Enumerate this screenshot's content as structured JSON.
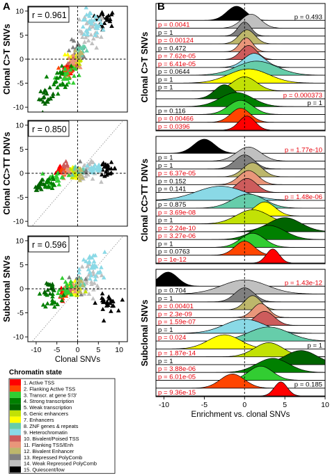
{
  "panel_labels": {
    "a": "A",
    "b": "B"
  },
  "chromatin_states": [
    {
      "label": "1. Active TSS",
      "color": "#ff0000"
    },
    {
      "label": "2. Flanking Active TSS",
      "color": "#ff4500"
    },
    {
      "label": "3. Transcr. at gene 5'/3'",
      "color": "#32cd32"
    },
    {
      "label": "4. Strong transcription",
      "color": "#008000"
    },
    {
      "label": "5. Weak transcription",
      "color": "#006400"
    },
    {
      "label": "6. Genic enhancers",
      "color": "#c2e105"
    },
    {
      "label": "7. Enhancers",
      "color": "#ffff00"
    },
    {
      "label": "8. ZNF genes & repeats",
      "color": "#66cdaa"
    },
    {
      "label": "9. Heterochromatin",
      "color": "#8ad9e6"
    },
    {
      "label": "10. Bivalent/Poised TSS",
      "color": "#cd5c5c"
    },
    {
      "label": "11. Flanking TSS/Enh",
      "color": "#e9967a"
    },
    {
      "label": "12. Bivalent Enhancer",
      "color": "#bdb76b"
    },
    {
      "label": "13. Repressed PolyComb",
      "color": "#808080"
    },
    {
      "label": "14. Weak Repressed PolyComb",
      "color": "#c0c0c0"
    },
    {
      "label": "15. Quiescent/low",
      "color": "#000000"
    }
  ],
  "legend_title": "Chromatin state",
  "chart_data": [
    {
      "type": "scatter",
      "ylabel": "Clonal C>T SNVs",
      "annotation": "r = 0.961",
      "xlim": [
        -12,
        12
      ],
      "ylim": [
        -11,
        11
      ],
      "xticks": [],
      "yticks": [
        "-10",
        "-5",
        "0",
        "5",
        "10"
      ],
      "ytick_values": [
        -10,
        -5,
        0,
        5,
        10
      ],
      "grid": false,
      "marker": "triangle",
      "show_diagonal": false,
      "clusters": [
        {
          "state": 15,
          "cx": 6.5,
          "cy": 8.5,
          "sx": 2.5,
          "sy": 1.5,
          "n": 25
        },
        {
          "state": 14,
          "cx": 3.5,
          "cy": 6,
          "sx": 2.5,
          "sy": 3,
          "n": 35
        },
        {
          "state": 9,
          "cx": 3,
          "cy": 7,
          "sx": 2.5,
          "sy": 2.5,
          "n": 30
        },
        {
          "state": 13,
          "cx": 0,
          "cy": 1.5,
          "sx": 2,
          "sy": 2,
          "n": 15
        },
        {
          "state": 7,
          "cx": -1,
          "cy": 0,
          "sx": 1.5,
          "sy": 1.5,
          "n": 25
        },
        {
          "state": 6,
          "cx": -0.5,
          "cy": -0.5,
          "sx": 1.5,
          "sy": 1.5,
          "n": 20
        },
        {
          "state": 1,
          "cx": -2,
          "cy": -2,
          "sx": 1.2,
          "sy": 1.2,
          "n": 20
        },
        {
          "state": 2,
          "cx": -2.5,
          "cy": -2.5,
          "sx": 1,
          "sy": 1,
          "n": 15
        },
        {
          "state": 10,
          "cx": -1.5,
          "cy": -1,
          "sx": 1,
          "sy": 1,
          "n": 10
        },
        {
          "state": 11,
          "cx": -1,
          "cy": -0.5,
          "sx": 1,
          "sy": 1,
          "n": 10
        },
        {
          "state": 3,
          "cx": -3,
          "cy": -3,
          "sx": 2,
          "sy": 2,
          "n": 20
        },
        {
          "state": 4,
          "cx": -4,
          "cy": -4,
          "sx": 2,
          "sy": 2.5,
          "n": 20
        },
        {
          "state": 5,
          "cx": -7.5,
          "cy": -8,
          "sx": 1.5,
          "sy": 1.5,
          "n": 20
        },
        {
          "state": 8,
          "cx": 1,
          "cy": 2,
          "sx": 1.5,
          "sy": 1.5,
          "n": 10
        },
        {
          "state": 12,
          "cx": 0.5,
          "cy": 1,
          "sx": 1,
          "sy": 1,
          "n": 8
        }
      ]
    },
    {
      "type": "scatter",
      "ylabel": "Clonal CC>TT DNVs",
      "annotation": "r = 0.850",
      "xlim": [
        -12,
        12
      ],
      "ylim": [
        -11,
        11
      ],
      "xticks": [],
      "yticks": [
        "-10",
        "-5",
        "0",
        "5",
        "10"
      ],
      "ytick_values": [
        -10,
        -5,
        0,
        5,
        10
      ],
      "grid": false,
      "marker": "triangle",
      "show_diagonal": true,
      "clusters": [
        {
          "state": 15,
          "cx": 7,
          "cy": 1,
          "sx": 2,
          "sy": 1,
          "n": 25
        },
        {
          "state": 14,
          "cx": 3,
          "cy": 0.5,
          "sx": 2,
          "sy": 1.5,
          "n": 25
        },
        {
          "state": 9,
          "cx": 4,
          "cy": 1,
          "sx": 2,
          "sy": 1.2,
          "n": 25
        },
        {
          "state": 13,
          "cx": 1,
          "cy": 0.5,
          "sx": 1.5,
          "sy": 1,
          "n": 12
        },
        {
          "state": 7,
          "cx": -1,
          "cy": 0,
          "sx": 1.5,
          "sy": 1,
          "n": 20
        },
        {
          "state": 6,
          "cx": -0.5,
          "cy": 0,
          "sx": 1.5,
          "sy": 1,
          "n": 15
        },
        {
          "state": 1,
          "cx": -4,
          "cy": 0.5,
          "sx": 0.8,
          "sy": 0.8,
          "n": 15
        },
        {
          "state": 2,
          "cx": -3.5,
          "cy": 0.5,
          "sx": 0.8,
          "sy": 0.8,
          "n": 12
        },
        {
          "state": 10,
          "cx": -3,
          "cy": 1,
          "sx": 1,
          "sy": 1,
          "n": 8
        },
        {
          "state": 11,
          "cx": -2,
          "cy": 0.5,
          "sx": 1,
          "sy": 1,
          "n": 8
        },
        {
          "state": 3,
          "cx": -5,
          "cy": -1,
          "sx": 2,
          "sy": 1.5,
          "n": 20
        },
        {
          "state": 4,
          "cx": -7,
          "cy": -2,
          "sx": 1.5,
          "sy": 1,
          "n": 20
        },
        {
          "state": 5,
          "cx": -9,
          "cy": -2.5,
          "sx": 1,
          "sy": 0.8,
          "n": 15
        },
        {
          "state": 8,
          "cx": 0,
          "cy": 0.5,
          "sx": 1.5,
          "sy": 1,
          "n": 10
        },
        {
          "state": 12,
          "cx": 0.5,
          "cy": 0,
          "sx": 1,
          "sy": 1,
          "n": 8
        }
      ]
    },
    {
      "type": "scatter",
      "ylabel": "Subclonal SNVs",
      "xlabel": "Clonal SNVs",
      "annotation": "r = 0.596",
      "xlim": [
        -12,
        12
      ],
      "ylim": [
        -11,
        11
      ],
      "xticks": [
        "-10",
        "-5",
        "0",
        "5",
        "10"
      ],
      "xtick_values": [
        -10,
        -5,
        0,
        5,
        10
      ],
      "yticks": [
        "-10",
        "-5",
        "0",
        "5",
        "10"
      ],
      "ytick_values": [
        -10,
        -5,
        0,
        5,
        10
      ],
      "grid": false,
      "marker": "triangle",
      "show_diagonal": true,
      "clusters": [
        {
          "state": 15,
          "cx": 7,
          "cy": -3,
          "sx": 2,
          "sy": 1.5,
          "n": 25
        },
        {
          "state": 14,
          "cx": 3,
          "cy": 2,
          "sx": 2,
          "sy": 3,
          "n": 25
        },
        {
          "state": 9,
          "cx": 3.5,
          "cy": 4,
          "sx": 2.5,
          "sy": 3,
          "n": 30
        },
        {
          "state": 13,
          "cx": 0,
          "cy": 1,
          "sx": 2,
          "sy": 2,
          "n": 12
        },
        {
          "state": 7,
          "cx": -1,
          "cy": 0,
          "sx": 1.5,
          "sy": 2,
          "n": 20
        },
        {
          "state": 6,
          "cx": 0,
          "cy": 0,
          "sx": 1.5,
          "sy": 1.5,
          "n": 15
        },
        {
          "state": 1,
          "cx": -3.5,
          "cy": -0.5,
          "sx": 0.8,
          "sy": 1.2,
          "n": 15
        },
        {
          "state": 2,
          "cx": -3,
          "cy": -1,
          "sx": 0.8,
          "sy": 1,
          "n": 12
        },
        {
          "state": 10,
          "cx": -2,
          "cy": 0,
          "sx": 1,
          "sy": 1.5,
          "n": 8
        },
        {
          "state": 11,
          "cx": -1.5,
          "cy": 0,
          "sx": 1,
          "sy": 1,
          "n": 8
        },
        {
          "state": 3,
          "cx": -2.5,
          "cy": 0.5,
          "sx": 1.5,
          "sy": 2,
          "n": 20
        },
        {
          "state": 4,
          "cx": -6,
          "cy": -2,
          "sx": 2,
          "sy": 1.5,
          "n": 18
        },
        {
          "state": 5,
          "cx": -7,
          "cy": 0,
          "sx": 1.5,
          "sy": 1.5,
          "n": 15
        },
        {
          "state": 8,
          "cx": 0.5,
          "cy": 1.5,
          "sx": 1.5,
          "sy": 1.5,
          "n": 10
        },
        {
          "state": 12,
          "cx": 0,
          "cy": 0.5,
          "sx": 1,
          "sy": 1,
          "n": 8
        }
      ]
    },
    {
      "type": "ridgeline",
      "ylabel": "Clonal C>T SNVs",
      "xlim": [
        -11,
        10
      ],
      "xticks": [],
      "rows": [
        {
          "state": 15,
          "p": "p = 0.493",
          "red": false,
          "mean": -1,
          "sd": 1.2,
          "skew": 0
        },
        {
          "state": 14,
          "p": "p = 0.0041",
          "red": true,
          "mean": 0.8,
          "sd": 1.2,
          "skew": 0
        },
        {
          "state": 13,
          "p": "p = 1",
          "red": false,
          "mean": 0,
          "sd": 0.8,
          "skew": 0
        },
        {
          "state": 12,
          "p": "p = 0.00124",
          "red": true,
          "mean": 0.3,
          "sd": 1.0,
          "skew": 0
        },
        {
          "state": 11,
          "p": "p = 0.472",
          "red": false,
          "mean": 0.2,
          "sd": 0.8,
          "skew": 0
        },
        {
          "state": 10,
          "p": "p = 7.62e-05",
          "red": true,
          "mean": 0.5,
          "sd": 1.0,
          "skew": 0
        },
        {
          "state": 9,
          "p": "p = 6.41e-05",
          "red": true,
          "mean": 1.2,
          "sd": 1.3,
          "skew": 0
        },
        {
          "state": 8,
          "p": "p = 0.0644",
          "red": false,
          "mean": 1.5,
          "sd": 2.5,
          "skew": 0
        },
        {
          "state": 7,
          "p": "p = 1",
          "red": false,
          "mean": 0.5,
          "sd": 2.5,
          "skew": 0
        },
        {
          "state": 6,
          "p": "p = 1",
          "red": false,
          "mean": 0,
          "sd": 1.5,
          "skew": 0
        },
        {
          "state": 5,
          "p": "p = 0.000373",
          "red": true,
          "mean": -2.5,
          "sd": 1.2,
          "skew": 0
        },
        {
          "state": 4,
          "p": "p = 1",
          "red": false,
          "mean": -1,
          "sd": 2,
          "skew": 0
        },
        {
          "state": 3,
          "p": "p = 0.116",
          "red": false,
          "mean": -0.5,
          "sd": 1.5,
          "skew": 0
        },
        {
          "state": 2,
          "p": "p = 0.00466",
          "red": true,
          "mean": -0.5,
          "sd": 1.2,
          "skew": 0
        },
        {
          "state": 1,
          "p": "p = 0.0396",
          "red": true,
          "mean": 0.3,
          "sd": 1.0,
          "skew": 0
        }
      ]
    },
    {
      "type": "ridgeline",
      "ylabel": "Clonal CC>TT DNVs",
      "xlim": [
        -11,
        10
      ],
      "xticks": [],
      "rows": [
        {
          "state": 15,
          "p": "p = 1.77e-10",
          "red": true,
          "mean": -5,
          "sd": 1.3,
          "skew": 0
        },
        {
          "state": 14,
          "p": "p = 1",
          "red": false,
          "mean": 0.5,
          "sd": 1.5,
          "skew": 0
        },
        {
          "state": 13,
          "p": "p = 1",
          "red": false,
          "mean": 0,
          "sd": 1.2,
          "skew": 0
        },
        {
          "state": 12,
          "p": "p = 6.37e-05",
          "red": true,
          "mean": 1,
          "sd": 1.2,
          "skew": 0
        },
        {
          "state": 11,
          "p": "p = 0.152",
          "red": false,
          "mean": 0.5,
          "sd": 1.2,
          "skew": 0
        },
        {
          "state": 10,
          "p": "p = 0.141",
          "red": false,
          "mean": 0.3,
          "sd": 1.2,
          "skew": 0
        },
        {
          "state": 9,
          "p": "p = 1.48e-06",
          "red": true,
          "mean": -3,
          "sd": 3,
          "skew": 0
        },
        {
          "state": 8,
          "p": "p = 0.875",
          "red": false,
          "mean": 0.5,
          "sd": 2,
          "skew": 0
        },
        {
          "state": 7,
          "p": "p = 3.69e-08",
          "red": true,
          "mean": 2.5,
          "sd": 1.3,
          "skew": 0
        },
        {
          "state": 6,
          "p": "p = 1",
          "red": false,
          "mean": 1,
          "sd": 2,
          "skew": 0
        },
        {
          "state": 5,
          "p": "p = 2.24e-10",
          "red": true,
          "mean": 5,
          "sd": 2,
          "skew": 0
        },
        {
          "state": 4,
          "p": "p = 3.27e-06",
          "red": true,
          "mean": 3,
          "sd": 2,
          "skew": 0
        },
        {
          "state": 3,
          "p": "p = 1",
          "red": false,
          "mean": 1,
          "sd": 1.5,
          "skew": 0
        },
        {
          "state": 2,
          "p": "p = 0.0763",
          "red": false,
          "mean": 0,
          "sd": 1.2,
          "skew": 0
        },
        {
          "state": 1,
          "p": "p = 1e-12",
          "red": true,
          "mean": 3.5,
          "sd": 0.8,
          "skew": 0
        }
      ]
    },
    {
      "type": "ridgeline",
      "ylabel": "Subclonal SNVs",
      "xlabel": "Enrichment vs. clonal SNVs",
      "xlim": [
        -11,
        10
      ],
      "xticks": [
        "-10",
        "-5",
        "0",
        "5",
        "10"
      ],
      "xtick_values": [
        -10,
        -5,
        0,
        5,
        10
      ],
      "rows": [
        {
          "state": 15,
          "p": "p = 1.43e-12",
          "red": true,
          "mean": -9.5,
          "sd": 1.2,
          "skew": 0
        },
        {
          "state": 14,
          "p": "p = 0.704",
          "red": false,
          "mean": 0,
          "sd": 2.8,
          "skew": 0
        },
        {
          "state": 13,
          "p": "p = 1",
          "red": false,
          "mean": 0,
          "sd": 1.2,
          "skew": 0
        },
        {
          "state": 12,
          "p": "p = 0.00401",
          "red": true,
          "mean": 1,
          "sd": 1.0,
          "skew": 0
        },
        {
          "state": 11,
          "p": "p = 2.3e-09",
          "red": true,
          "mean": 2,
          "sd": 1.0,
          "skew": 0
        },
        {
          "state": 10,
          "p": "p = 1.59e-07",
          "red": true,
          "mean": 2.5,
          "sd": 1.2,
          "skew": 0
        },
        {
          "state": 9,
          "p": "p = 1",
          "red": false,
          "mean": 0,
          "sd": 2.5,
          "skew": 0
        },
        {
          "state": 8,
          "p": "p = 0.024",
          "red": true,
          "mean": 3,
          "sd": 2.5,
          "skew": 0
        },
        {
          "state": 7,
          "p": "p = 1",
          "red": false,
          "mean": -2.5,
          "sd": 2,
          "skew": 0
        },
        {
          "state": 6,
          "p": "p = 1.87e-14",
          "red": true,
          "mean": 3,
          "sd": 1.8,
          "skew": 0
        },
        {
          "state": 5,
          "p": "p = 1",
          "red": false,
          "mean": 7,
          "sd": 2,
          "skew": 0
        },
        {
          "state": 4,
          "p": "p = 3.88e-06",
          "red": true,
          "mean": 3.5,
          "sd": 2,
          "skew": 0
        },
        {
          "state": 3,
          "p": "p = 6.01e-05",
          "red": true,
          "mean": 2,
          "sd": 1.5,
          "skew": 0
        },
        {
          "state": 2,
          "p": "p = 0.185",
          "red": false,
          "mean": -1.5,
          "sd": 1.5,
          "skew": 0
        },
        {
          "state": 1,
          "p": "p = 9.36e-15",
          "red": true,
          "mean": 4.5,
          "sd": 0.8,
          "skew": 0
        }
      ]
    }
  ]
}
